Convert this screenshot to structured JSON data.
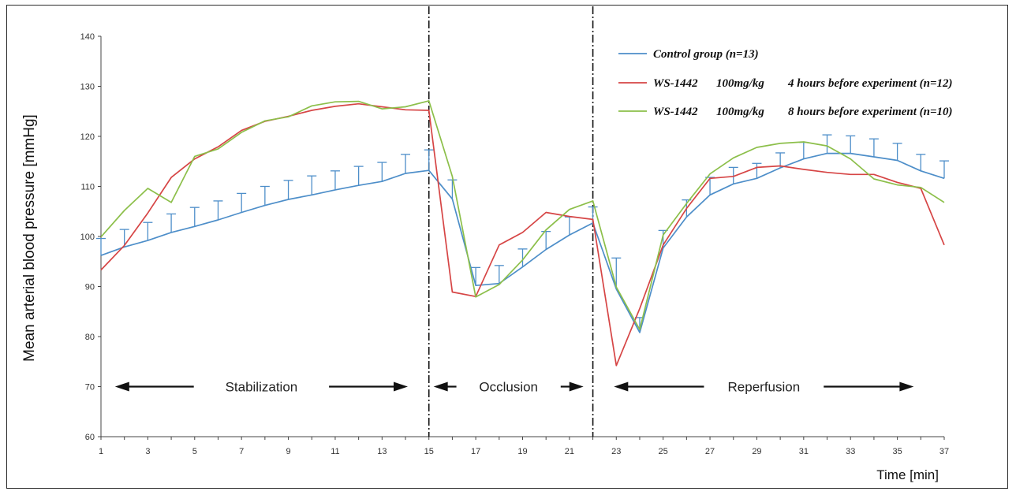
{
  "chart_data": {
    "type": "line",
    "ylabel": "Mean arterial blood pressure [mmHg]",
    "xlabel": "Time [min]",
    "ylim": [
      60,
      140
    ],
    "xlim": [
      1,
      37
    ],
    "yticks": [
      60,
      70,
      80,
      90,
      100,
      110,
      120,
      130,
      140
    ],
    "xticks": [
      1,
      3,
      5,
      7,
      9,
      11,
      13,
      15,
      17,
      19,
      21,
      23,
      25,
      27,
      29,
      31,
      33,
      35,
      37
    ],
    "grid": false,
    "legend_position": "top-right",
    "dividers": [
      15,
      22
    ],
    "phases": [
      {
        "label": "Stabilization",
        "from": 1.6,
        "to": 14.1
      },
      {
        "label": "Occlusion",
        "from": 15.2,
        "to": 21.6
      },
      {
        "label": "Reperfusion",
        "from": 22.9,
        "to": 35.7
      }
    ],
    "x": [
      1,
      2,
      3,
      4,
      5,
      6,
      7,
      8,
      9,
      10,
      11,
      12,
      13,
      14,
      15,
      16,
      17,
      18,
      19,
      20,
      21,
      22,
      23,
      24,
      25,
      26,
      27,
      28,
      29,
      30,
      31,
      32,
      33,
      34,
      35,
      36,
      37
    ],
    "series": [
      {
        "name": "Control group (n=13)",
        "color": "#4d8ec9",
        "values": [
          96.2,
          97.9,
          99.2,
          100.8,
          102.0,
          103.3,
          104.8,
          106.2,
          107.4,
          108.3,
          109.3,
          110.2,
          111.0,
          112.6,
          113.2,
          107.5,
          90.2,
          90.6,
          93.9,
          97.4,
          100.3,
          102.7,
          89.5,
          80.8,
          97.7,
          103.9,
          108.3,
          110.5,
          111.6,
          113.7,
          115.5,
          116.6,
          116.6,
          115.9,
          115.2,
          113.1,
          111.6
        ],
        "error": [
          3.4,
          3.5,
          3.6,
          3.7,
          3.8,
          3.8,
          3.8,
          3.8,
          3.8,
          3.8,
          3.8,
          3.8,
          3.8,
          3.8,
          4.1,
          3.8,
          3.6,
          3.6,
          3.6,
          3.6,
          3.6,
          3.2,
          6.2,
          3.0,
          3.5,
          3.4,
          3.5,
          3.3,
          3.0,
          3.0,
          3.3,
          3.7,
          3.5,
          3.6,
          3.4,
          3.3,
          3.5
        ],
        "error_label": "+SE"
      },
      {
        "name": "WS-1442 100mg/kg 4 hours before experiment (n=12)",
        "color": "#d64545",
        "values": [
          93.3,
          98.2,
          104.7,
          111.8,
          115.5,
          117.9,
          121.2,
          123.0,
          124.0,
          125.2,
          126.0,
          126.5,
          125.9,
          125.3,
          125.2,
          88.9,
          88.0,
          98.3,
          100.8,
          104.8,
          104.0,
          103.4,
          74.2,
          85.6,
          98.3,
          105.6,
          111.6,
          112.0,
          113.8,
          114.1,
          113.4,
          112.8,
          112.4,
          112.4,
          110.8,
          109.6,
          98.3
        ]
      },
      {
        "name": "WS-1442 100mg/kg 8 hours before experiment (n=10)",
        "color": "#8cbf4a",
        "values": [
          99.9,
          105.2,
          109.6,
          106.8,
          116.0,
          117.5,
          120.8,
          123.1,
          123.9,
          126.1,
          126.9,
          127.0,
          125.5,
          125.9,
          127.1,
          112.0,
          87.9,
          90.4,
          95.3,
          101.3,
          105.4,
          107.1,
          89.9,
          81.4,
          100.3,
          106.6,
          112.5,
          115.7,
          117.8,
          118.6,
          118.9,
          118.1,
          115.5,
          111.5,
          110.3,
          109.8,
          106.8
        ]
      }
    ]
  },
  "legend": {
    "control": "Control group (n=13)",
    "g4_a": "WS-1442",
    "g4_b": "100mg/kg",
    "g4_c": "4 hours before experiment (n=12)",
    "g8_a": "WS-1442",
    "g8_b": "100mg/kg",
    "g8_c": "8 hours before experiment (n=10)"
  }
}
